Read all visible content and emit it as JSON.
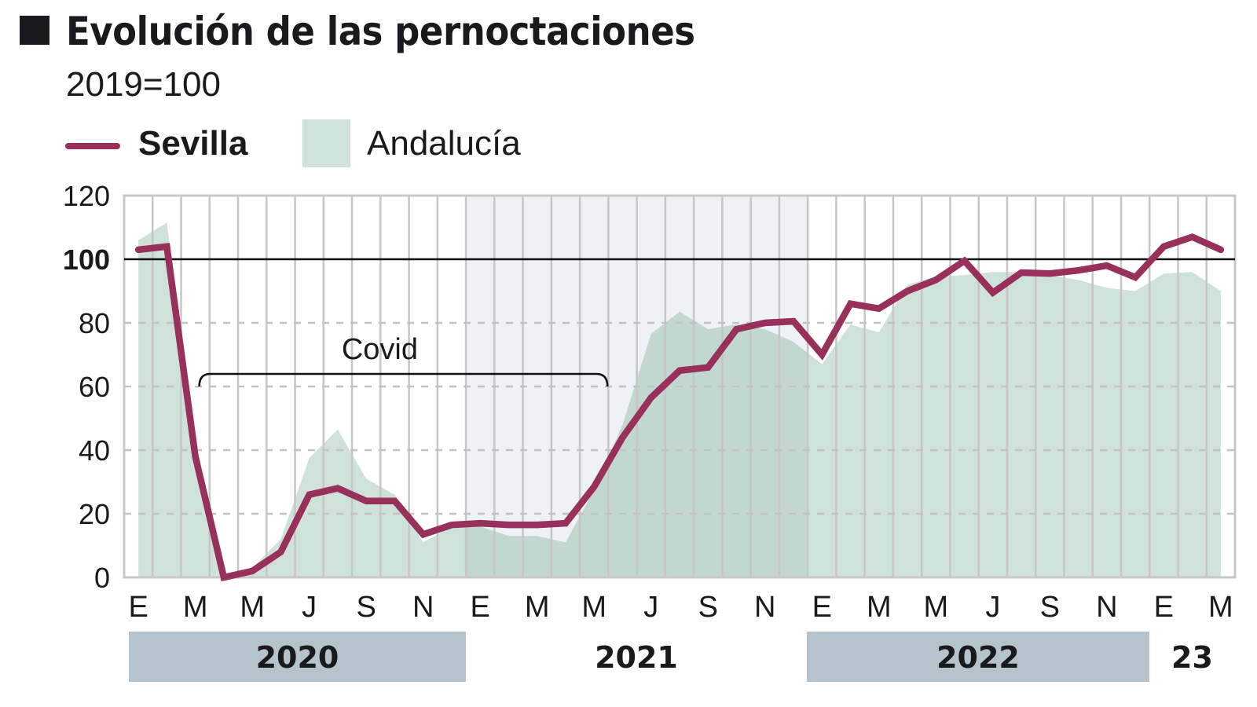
{
  "header": {
    "title": "Evolución de las pernoctaciones",
    "subtitle": "2019=100"
  },
  "legend": {
    "sevilla_label": "Sevilla",
    "andalucia_label": "Andalucía"
  },
  "colors": {
    "sevilla": "#98305c",
    "andalucia": "#cfe2d9",
    "andalucia_overlay": "#c3d7d1",
    "covid_shade": "#eef2f6",
    "grid": "#c6c6c6",
    "year_bar": "#b4c3cc",
    "title_square": "#1a1a1e"
  },
  "annotation": {
    "covid_label": "Covid",
    "start_index": 2,
    "end_index": 16
  },
  "chart_data": {
    "type": "line",
    "title": "Evolución de las pernoctaciones",
    "subtitle": "2019=100",
    "xlabel": "",
    "ylabel": "",
    "ylim": [
      0,
      120
    ],
    "yticks": [
      0,
      20,
      40,
      60,
      80,
      100,
      120
    ],
    "reference_line": 100,
    "grid": true,
    "legend_position": "top-left",
    "x": [
      "2020-01",
      "2020-02",
      "2020-03",
      "2020-04",
      "2020-05",
      "2020-06",
      "2020-07",
      "2020-08",
      "2020-09",
      "2020-10",
      "2020-11",
      "2020-12",
      "2021-01",
      "2021-02",
      "2021-03",
      "2021-04",
      "2021-05",
      "2021-06",
      "2021-07",
      "2021-08",
      "2021-09",
      "2021-10",
      "2021-11",
      "2021-12",
      "2022-01",
      "2022-02",
      "2022-03",
      "2022-04",
      "2022-05",
      "2022-06",
      "2022-07",
      "2022-08",
      "2022-09",
      "2022-10",
      "2022-11",
      "2022-12",
      "2023-01",
      "2023-02",
      "2023-03"
    ],
    "x_tick_labels": [
      "E",
      "M",
      "M",
      "J",
      "S",
      "N",
      "E",
      "M",
      "M",
      "J",
      "S",
      "N",
      "E",
      "M",
      "M",
      "J",
      "S",
      "N",
      "E",
      "M"
    ],
    "year_labels": [
      {
        "label": "2020",
        "shaded": true
      },
      {
        "label": "2021",
        "shaded": false
      },
      {
        "label": "2022",
        "shaded": true
      },
      {
        "label": "23",
        "shaded": false
      }
    ],
    "series": [
      {
        "name": "Sevilla",
        "type": "line",
        "values": [
          103,
          104,
          38,
          0,
          2,
          8,
          26,
          28,
          24,
          24,
          13.5,
          16.5,
          17,
          16.5,
          16.5,
          17,
          28.5,
          44,
          56.5,
          65,
          66,
          78,
          80,
          80.5,
          70,
          86,
          84.5,
          90,
          93.5,
          99.5,
          89.5,
          95.8,
          95.5,
          96.5,
          98,
          94.3,
          104,
          107,
          103
        ]
      },
      {
        "name": "Andalucía",
        "type": "area",
        "values": [
          106,
          111.5,
          40,
          1,
          3,
          12,
          37.5,
          46.5,
          31,
          26,
          11,
          16,
          16,
          13,
          13,
          11,
          27.5,
          48,
          76.5,
          83.5,
          78,
          79.5,
          78,
          74,
          67,
          79.5,
          77,
          92,
          94.5,
          95,
          96,
          96,
          95,
          93.5,
          91,
          90,
          95.5,
          96,
          90
        ]
      }
    ]
  }
}
